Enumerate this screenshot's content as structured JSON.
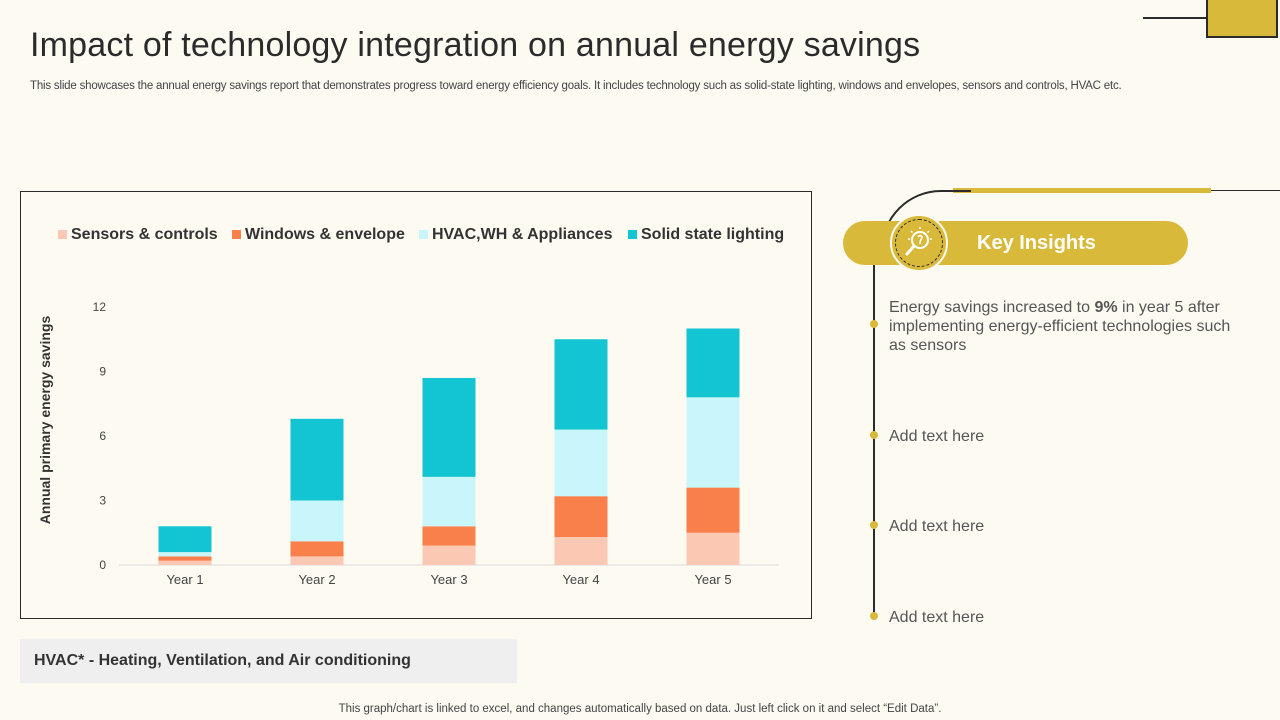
{
  "header": {
    "title": "Impact of technology integration on annual energy savings",
    "subtitle": "This slide showcases the annual energy savings report that demonstrates progress toward energy efficiency goals. It includes technology such as solid-state lighting, windows and envelopes,  sensors and controls, HVAC etc."
  },
  "chart_data": {
    "type": "bar",
    "stacked": true,
    "title": "",
    "xlabel": "",
    "ylabel": "Annual primary energy savings",
    "ylim": [
      0,
      12
    ],
    "yticks": [
      0,
      3,
      6,
      9,
      12
    ],
    "categories": [
      "Year 1",
      "Year 2",
      "Year 3",
      "Year 4",
      "Year 5"
    ],
    "legend_position": "top",
    "series": [
      {
        "name": "Sensors & controls",
        "color": "#fbc8b4",
        "values": [
          0.2,
          0.4,
          0.9,
          1.3,
          1.5
        ]
      },
      {
        "name": "Windows & envelope",
        "color": "#f97f4b",
        "values": [
          0.2,
          0.7,
          0.9,
          1.9,
          2.1
        ]
      },
      {
        "name": "HVAC,WH & Appliances",
        "color": "#c9f6fa",
        "values": [
          0.2,
          1.9,
          2.3,
          3.1,
          4.2
        ]
      },
      {
        "name": "Solid state lighting",
        "color": "#13c4d3",
        "values": [
          1.2,
          3.8,
          4.6,
          4.2,
          3.2
        ]
      }
    ]
  },
  "note": {
    "text": "HVAC* - Heating, Ventilation, and Air conditioning"
  },
  "footer": {
    "text": "This graph/chart is linked to excel, and changes automatically based on data. Just left click on it and select “Edit Data”."
  },
  "insights": {
    "heading": "Key Insights",
    "icon": "lightbulb-search-icon",
    "items": [
      {
        "before": "Energy savings increased to ",
        "highlight": "9%",
        "after": " in year 5 after implementing energy-efficient technologies such as sensors"
      },
      {
        "text": "Add text here"
      },
      {
        "text": "Add text here"
      },
      {
        "text": "Add text here"
      }
    ]
  },
  "colors": {
    "accent": "#d9b93a",
    "background": "#fdfaf2",
    "dark": "#2b2b2b"
  }
}
